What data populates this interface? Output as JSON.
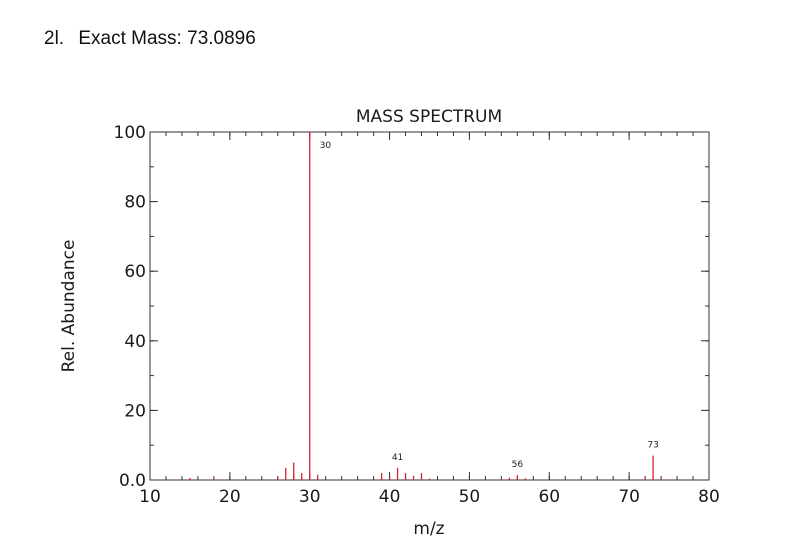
{
  "header": {
    "problem_id": "2l.",
    "label": "Exact Mass:",
    "value": "73.0896"
  },
  "chart_data": {
    "type": "bar",
    "title": "MASS SPECTRUM",
    "xlabel": "m/z",
    "ylabel": "Rel. Abundance",
    "xlim": [
      10,
      80
    ],
    "ylim": [
      0,
      100
    ],
    "x_ticks": [
      10,
      20,
      30,
      40,
      50,
      60,
      70,
      80
    ],
    "y_ticks": [
      0,
      20,
      40,
      60,
      80,
      100
    ],
    "y_tick_labels": [
      "0.0",
      "20",
      "40",
      "60",
      "80",
      "100"
    ],
    "grid": false,
    "bar_color": "#d9202f",
    "peaks": [
      {
        "mz": 15,
        "abundance": 0.6
      },
      {
        "mz": 18,
        "abundance": 0.4
      },
      {
        "mz": 26,
        "abundance": 0.8
      },
      {
        "mz": 27,
        "abundance": 3.5
      },
      {
        "mz": 28,
        "abundance": 5.0
      },
      {
        "mz": 29,
        "abundance": 2.0
      },
      {
        "mz": 30,
        "abundance": 100
      },
      {
        "mz": 31,
        "abundance": 1.5
      },
      {
        "mz": 39,
        "abundance": 2.0
      },
      {
        "mz": 40,
        "abundance": 0.8
      },
      {
        "mz": 41,
        "abundance": 3.5
      },
      {
        "mz": 42,
        "abundance": 2.0
      },
      {
        "mz": 43,
        "abundance": 1.2
      },
      {
        "mz": 44,
        "abundance": 2.0
      },
      {
        "mz": 45,
        "abundance": 0.4
      },
      {
        "mz": 54,
        "abundance": 0.4
      },
      {
        "mz": 55,
        "abundance": 0.7
      },
      {
        "mz": 56,
        "abundance": 1.4
      },
      {
        "mz": 57,
        "abundance": 0.5
      },
      {
        "mz": 72,
        "abundance": 0.6
      },
      {
        "mz": 73,
        "abundance": 7.0
      },
      {
        "mz": 74,
        "abundance": 0.4
      }
    ],
    "peak_labels": [
      {
        "mz": 30,
        "text": "30"
      },
      {
        "mz": 41,
        "text": "41"
      },
      {
        "mz": 56,
        "text": "56"
      },
      {
        "mz": 73,
        "text": "73"
      }
    ]
  }
}
